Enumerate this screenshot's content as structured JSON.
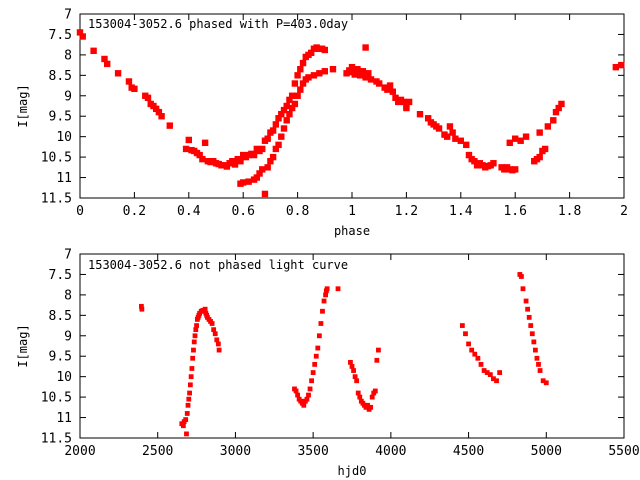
{
  "marker_color": "#ff0000",
  "chart_data": [
    {
      "type": "scatter",
      "title": "153004-3052.6 phased with P=403.0day",
      "xlabel": "phase",
      "ylabel": "I[mag]",
      "xlim": [
        0,
        2
      ],
      "ylim": [
        11.5,
        7
      ],
      "y_inverted": true,
      "xticks": [
        "0",
        "0.2",
        "0.4",
        "0.6",
        "0.8",
        "1",
        "1.2",
        "1.4",
        "1.6",
        "1.8",
        "2"
      ],
      "yticks": [
        "7",
        "7.5",
        "8",
        "8.5",
        "9",
        "9.5",
        "10",
        "10.5",
        "11",
        "11.5"
      ],
      "grid": false,
      "points": [
        [
          0.0,
          7.45
        ],
        [
          0.01,
          7.55
        ],
        [
          0.05,
          7.9
        ],
        [
          0.09,
          8.1
        ],
        [
          0.1,
          8.22
        ],
        [
          0.14,
          8.45
        ],
        [
          0.18,
          8.65
        ],
        [
          0.19,
          8.8
        ],
        [
          0.2,
          8.83
        ],
        [
          0.24,
          9.0
        ],
        [
          0.25,
          9.05
        ],
        [
          0.26,
          9.2
        ],
        [
          0.27,
          9.25
        ],
        [
          0.28,
          9.32
        ],
        [
          0.29,
          9.4
        ],
        [
          0.3,
          9.5
        ],
        [
          0.33,
          9.73
        ],
        [
          0.39,
          10.3
        ],
        [
          0.4,
          10.08
        ],
        [
          0.41,
          10.33
        ],
        [
          0.42,
          10.35
        ],
        [
          0.43,
          10.4
        ],
        [
          0.44,
          10.45
        ],
        [
          0.45,
          10.55
        ],
        [
          0.46,
          10.15
        ],
        [
          0.47,
          10.6
        ],
        [
          0.48,
          10.62
        ],
        [
          0.49,
          10.6
        ],
        [
          0.5,
          10.65
        ],
        [
          0.51,
          10.67
        ],
        [
          0.52,
          10.7
        ],
        [
          0.53,
          10.7
        ],
        [
          0.54,
          10.73
        ],
        [
          0.55,
          10.65
        ],
        [
          0.56,
          10.6
        ],
        [
          0.57,
          10.68
        ],
        [
          0.58,
          10.55
        ],
        [
          0.59,
          10.6
        ],
        [
          0.6,
          10.45
        ],
        [
          0.61,
          10.5
        ],
        [
          0.62,
          10.45
        ],
        [
          0.63,
          10.42
        ],
        [
          0.64,
          10.45
        ],
        [
          0.65,
          10.3
        ],
        [
          0.66,
          10.35
        ],
        [
          0.67,
          10.3
        ],
        [
          0.68,
          10.1
        ],
        [
          0.69,
          10.05
        ],
        [
          0.7,
          9.9
        ],
        [
          0.71,
          9.85
        ],
        [
          0.72,
          9.7
        ],
        [
          0.73,
          9.55
        ],
        [
          0.74,
          9.45
        ],
        [
          0.75,
          9.35
        ],
        [
          0.76,
          9.25
        ],
        [
          0.77,
          9.1
        ],
        [
          0.78,
          9.0
        ],
        [
          0.79,
          8.7
        ],
        [
          0.8,
          8.5
        ],
        [
          0.81,
          8.35
        ],
        [
          0.82,
          8.2
        ],
        [
          0.83,
          8.05
        ],
        [
          0.84,
          8.0
        ],
        [
          0.85,
          7.95
        ],
        [
          0.86,
          7.85
        ],
        [
          0.87,
          7.82
        ],
        [
          0.88,
          7.85
        ],
        [
          0.89,
          7.85
        ],
        [
          0.9,
          7.88
        ],
        [
          0.59,
          11.15
        ],
        [
          0.6,
          11.12
        ],
        [
          0.62,
          11.1
        ],
        [
          0.64,
          11.05
        ],
        [
          0.65,
          11.0
        ],
        [
          0.66,
          10.9
        ],
        [
          0.67,
          10.8
        ],
        [
          0.68,
          11.4
        ],
        [
          0.69,
          10.75
        ],
        [
          0.7,
          10.6
        ],
        [
          0.71,
          10.5
        ],
        [
          0.72,
          10.3
        ],
        [
          0.73,
          10.2
        ],
        [
          0.74,
          10.0
        ],
        [
          0.75,
          9.8
        ],
        [
          0.76,
          9.6
        ],
        [
          0.77,
          9.45
        ],
        [
          0.78,
          9.3
        ],
        [
          0.79,
          9.2
        ],
        [
          0.8,
          9.0
        ],
        [
          0.81,
          8.85
        ],
        [
          0.82,
          8.7
        ],
        [
          0.83,
          8.6
        ],
        [
          0.84,
          8.55
        ],
        [
          0.86,
          8.5
        ],
        [
          0.88,
          8.45
        ],
        [
          0.9,
          8.4
        ],
        [
          0.93,
          8.35
        ],
        [
          0.98,
          8.45
        ],
        [
          0.99,
          8.38
        ],
        [
          1.0,
          8.42
        ],
        [
          1.0,
          8.3
        ],
        [
          1.01,
          8.48
        ],
        [
          1.02,
          8.35
        ],
        [
          1.03,
          8.5
        ],
        [
          1.04,
          8.4
        ],
        [
          1.05,
          7.82
        ],
        [
          1.05,
          8.55
        ],
        [
          1.06,
          8.45
        ],
        [
          1.07,
          8.6
        ],
        [
          1.09,
          8.65
        ],
        [
          1.1,
          8.7
        ],
        [
          1.12,
          8.8
        ],
        [
          1.13,
          8.85
        ],
        [
          1.14,
          8.75
        ],
        [
          1.15,
          8.9
        ],
        [
          1.16,
          9.05
        ],
        [
          1.17,
          9.15
        ],
        [
          1.18,
          9.1
        ],
        [
          1.19,
          9.15
        ],
        [
          1.2,
          9.25
        ],
        [
          1.2,
          9.3
        ],
        [
          1.21,
          9.15
        ],
        [
          1.25,
          9.45
        ],
        [
          1.28,
          9.55
        ],
        [
          1.29,
          9.65
        ],
        [
          1.3,
          9.7
        ],
        [
          1.31,
          9.75
        ],
        [
          1.32,
          9.8
        ],
        [
          1.34,
          9.95
        ],
        [
          1.35,
          10.0
        ],
        [
          1.36,
          9.75
        ],
        [
          1.37,
          9.9
        ],
        [
          1.38,
          10.05
        ],
        [
          1.4,
          10.1
        ],
        [
          1.42,
          10.2
        ],
        [
          1.43,
          10.45
        ],
        [
          1.44,
          10.55
        ],
        [
          1.45,
          10.6
        ],
        [
          1.46,
          10.7
        ],
        [
          1.47,
          10.65
        ],
        [
          1.48,
          10.7
        ],
        [
          1.49,
          10.75
        ],
        [
          1.5,
          10.72
        ],
        [
          1.51,
          10.7
        ],
        [
          1.52,
          10.65
        ],
        [
          1.55,
          10.75
        ],
        [
          1.56,
          10.8
        ],
        [
          1.57,
          10.75
        ],
        [
          1.58,
          10.8
        ],
        [
          1.59,
          10.82
        ],
        [
          1.6,
          10.8
        ],
        [
          1.58,
          10.15
        ],
        [
          1.6,
          10.05
        ],
        [
          1.62,
          10.1
        ],
        [
          1.64,
          10.0
        ],
        [
          1.67,
          10.6
        ],
        [
          1.68,
          10.55
        ],
        [
          1.69,
          10.5
        ],
        [
          1.7,
          10.35
        ],
        [
          1.71,
          10.3
        ],
        [
          1.69,
          9.9
        ],
        [
          1.72,
          9.75
        ],
        [
          1.74,
          9.6
        ],
        [
          1.75,
          9.4
        ],
        [
          1.76,
          9.3
        ],
        [
          1.77,
          9.2
        ],
        [
          1.97,
          8.3
        ],
        [
          1.99,
          8.25
        ]
      ]
    },
    {
      "type": "scatter",
      "title": "153004-3052.6 not phased light curve",
      "xlabel": "hjd0",
      "ylabel": "I[mag]",
      "xlim": [
        2000,
        5500
      ],
      "ylim": [
        11.5,
        7
      ],
      "y_inverted": true,
      "xticks": [
        "2000",
        "2500",
        "3000",
        "3500",
        "4000",
        "4500",
        "5000",
        "5500"
      ],
      "yticks": [
        "7",
        "7.5",
        "8",
        "8.5",
        "9",
        "9.5",
        "10",
        "10.5",
        "11",
        "11.5"
      ],
      "grid": false,
      "points": [
        [
          2395,
          8.28
        ],
        [
          2398,
          8.35
        ],
        [
          2655,
          11.15
        ],
        [
          2665,
          11.2
        ],
        [
          2670,
          11.1
        ],
        [
          2680,
          11.05
        ],
        [
          2685,
          11.4
        ],
        [
          2690,
          10.9
        ],
        [
          2695,
          10.7
        ],
        [
          2700,
          10.55
        ],
        [
          2705,
          10.4
        ],
        [
          2710,
          10.2
        ],
        [
          2715,
          10.0
        ],
        [
          2720,
          9.8
        ],
        [
          2725,
          9.55
        ],
        [
          2730,
          9.35
        ],
        [
          2735,
          9.15
        ],
        [
          2740,
          9.0
        ],
        [
          2745,
          8.85
        ],
        [
          2750,
          8.75
        ],
        [
          2755,
          8.6
        ],
        [
          2760,
          8.55
        ],
        [
          2765,
          8.5
        ],
        [
          2770,
          8.45
        ],
        [
          2780,
          8.4
        ],
        [
          2790,
          8.38
        ],
        [
          2800,
          8.4
        ],
        [
          2805,
          8.35
        ],
        [
          2810,
          8.45
        ],
        [
          2815,
          8.5
        ],
        [
          2820,
          8.55
        ],
        [
          2830,
          8.6
        ],
        [
          2840,
          8.65
        ],
        [
          2850,
          8.7
        ],
        [
          2860,
          8.85
        ],
        [
          2870,
          8.95
        ],
        [
          2880,
          9.1
        ],
        [
          2890,
          9.2
        ],
        [
          2895,
          9.35
        ],
        [
          3380,
          10.3
        ],
        [
          3390,
          10.35
        ],
        [
          3400,
          10.45
        ],
        [
          3410,
          10.55
        ],
        [
          3420,
          10.6
        ],
        [
          3430,
          10.65
        ],
        [
          3440,
          10.7
        ],
        [
          3450,
          10.6
        ],
        [
          3460,
          10.55
        ],
        [
          3470,
          10.45
        ],
        [
          3480,
          10.3
        ],
        [
          3490,
          10.1
        ],
        [
          3500,
          9.9
        ],
        [
          3510,
          9.7
        ],
        [
          3520,
          9.5
        ],
        [
          3530,
          9.3
        ],
        [
          3540,
          9.0
        ],
        [
          3550,
          8.7
        ],
        [
          3560,
          8.4
        ],
        [
          3570,
          8.15
        ],
        [
          3580,
          8.0
        ],
        [
          3585,
          7.9
        ],
        [
          3590,
          7.85
        ],
        [
          3660,
          7.85
        ],
        [
          3740,
          9.65
        ],
        [
          3750,
          9.75
        ],
        [
          3760,
          9.85
        ],
        [
          3770,
          10.0
        ],
        [
          3780,
          10.1
        ],
        [
          3790,
          10.4
        ],
        [
          3800,
          10.5
        ],
        [
          3810,
          10.6
        ],
        [
          3820,
          10.65
        ],
        [
          3830,
          10.7
        ],
        [
          3840,
          10.75
        ],
        [
          3850,
          10.7
        ],
        [
          3860,
          10.8
        ],
        [
          3870,
          10.75
        ],
        [
          3880,
          10.5
        ],
        [
          3890,
          10.4
        ],
        [
          3900,
          10.35
        ],
        [
          3910,
          9.6
        ],
        [
          3920,
          9.35
        ],
        [
          4460,
          8.75
        ],
        [
          4480,
          8.95
        ],
        [
          4500,
          9.2
        ],
        [
          4520,
          9.35
        ],
        [
          4540,
          9.45
        ],
        [
          4560,
          9.55
        ],
        [
          4580,
          9.7
        ],
        [
          4600,
          9.85
        ],
        [
          4620,
          9.9
        ],
        [
          4640,
          9.95
        ],
        [
          4660,
          10.05
        ],
        [
          4680,
          10.1
        ],
        [
          4700,
          9.9
        ],
        [
          4830,
          7.5
        ],
        [
          4840,
          7.55
        ],
        [
          4850,
          7.85
        ],
        [
          4870,
          8.15
        ],
        [
          4880,
          8.35
        ],
        [
          4890,
          8.55
        ],
        [
          4900,
          8.75
        ],
        [
          4910,
          8.95
        ],
        [
          4920,
          9.15
        ],
        [
          4930,
          9.35
        ],
        [
          4940,
          9.55
        ],
        [
          4950,
          9.7
        ],
        [
          4960,
          9.85
        ],
        [
          4980,
          10.1
        ],
        [
          5000,
          10.15
        ]
      ]
    }
  ]
}
